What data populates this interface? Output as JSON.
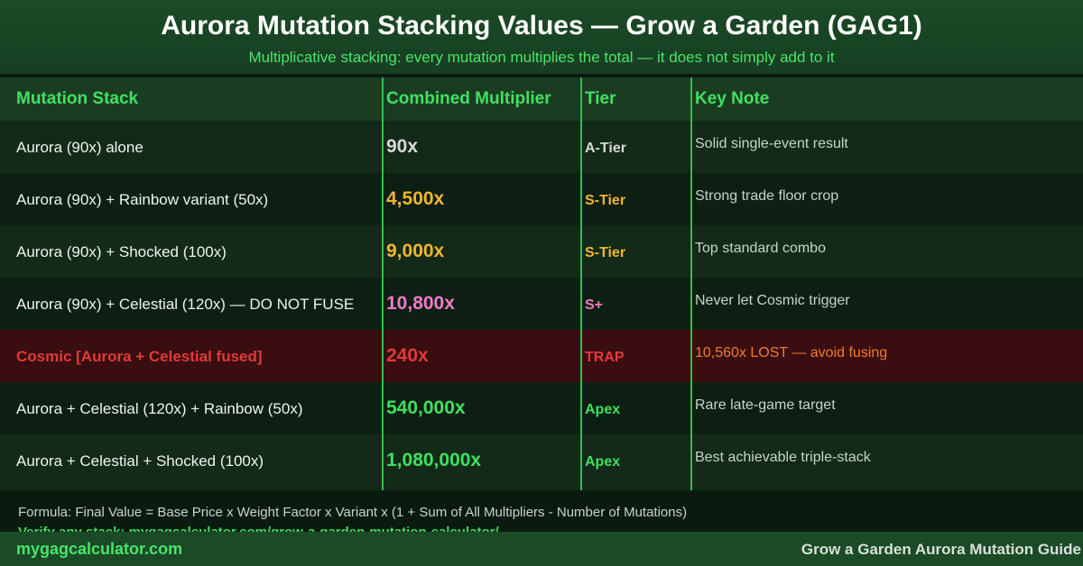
{
  "header": {
    "title": "Aurora Mutation Stacking Values — Grow a Garden (GAG1)",
    "subtitle": "Multiplicative stacking: every mutation multiplies the total — it does not simply add to it"
  },
  "table": {
    "columns": [
      "Mutation Stack",
      "Combined Multiplier",
      "Tier",
      "Key Note"
    ],
    "rows": [
      {
        "stack": "Aurora (90x) alone",
        "multiplier": "90x",
        "tier": "A-Tier",
        "note": "Solid single-event result",
        "mult_color": "#d8d8d8",
        "tier_color": "#d8d8d8",
        "stack_color": "#eef3ee",
        "note_color": "#c9d3c9",
        "style": "odd"
      },
      {
        "stack": "Aurora (90x) + Rainbow variant (50x)",
        "multiplier": "4,500x",
        "tier": "S-Tier",
        "note": "Strong trade floor crop",
        "mult_color": "#f2b530",
        "tier_color": "#f2b530",
        "stack_color": "#eef3ee",
        "note_color": "#c9d3c9",
        "style": "even"
      },
      {
        "stack": "Aurora (90x) + Shocked (100x)",
        "multiplier": "9,000x",
        "tier": "S-Tier",
        "note": "Top standard combo",
        "mult_color": "#f2b530",
        "tier_color": "#f2b530",
        "stack_color": "#eef3ee",
        "note_color": "#c9d3c9",
        "style": "odd"
      },
      {
        "stack": "Aurora (90x) + Celestial (120x) — DO NOT FUSE",
        "multiplier": "10,800x",
        "tier": "S+",
        "note": "Never let Cosmic trigger",
        "mult_color": "#f07ac8",
        "tier_color": "#f07ac8",
        "stack_color": "#eef3ee",
        "note_color": "#c9d3c9",
        "style": "even"
      },
      {
        "stack": "Cosmic [Aurora + Celestial fused]",
        "multiplier": "240x",
        "tier": "TRAP",
        "note": "10,560x LOST — avoid fusing",
        "mult_color": "#e03a3a",
        "tier_color": "#e03a3a",
        "stack_color": "#e03a3a",
        "note_color": "#f07a30",
        "style": "trap"
      },
      {
        "stack": "Aurora + Celestial (120x) + Rainbow (50x)",
        "multiplier": "540,000x",
        "tier": "Apex",
        "note": "Rare late-game target",
        "mult_color": "#3fe05e",
        "tier_color": "#3fe05e",
        "stack_color": "#eef3ee",
        "note_color": "#c9d3c9",
        "style": "even"
      },
      {
        "stack": "Aurora + Celestial + Shocked (100x)",
        "multiplier": "1,080,000x",
        "tier": "Apex",
        "note": "Best achievable triple-stack",
        "mult_color": "#3fe05e",
        "tier_color": "#3fe05e",
        "stack_color": "#eef3ee",
        "note_color": "#c9d3c9",
        "style": "odd"
      }
    ]
  },
  "footer": {
    "formula": "Formula: Final Value = Base Price x Weight Factor x Variant x (1 + Sum of All Multipliers - Number of Mutations)",
    "verify": "Verify any stack: mygagcalculator.com/grow-a-garden-mutation-calculator/",
    "site": "mygagcalculator.com",
    "guide": "Grow a Garden Aurora Mutation Guide"
  },
  "colors": {
    "accent": "#42e064",
    "header_bg": "#1b4a27",
    "divider": "#2fbf4d"
  }
}
